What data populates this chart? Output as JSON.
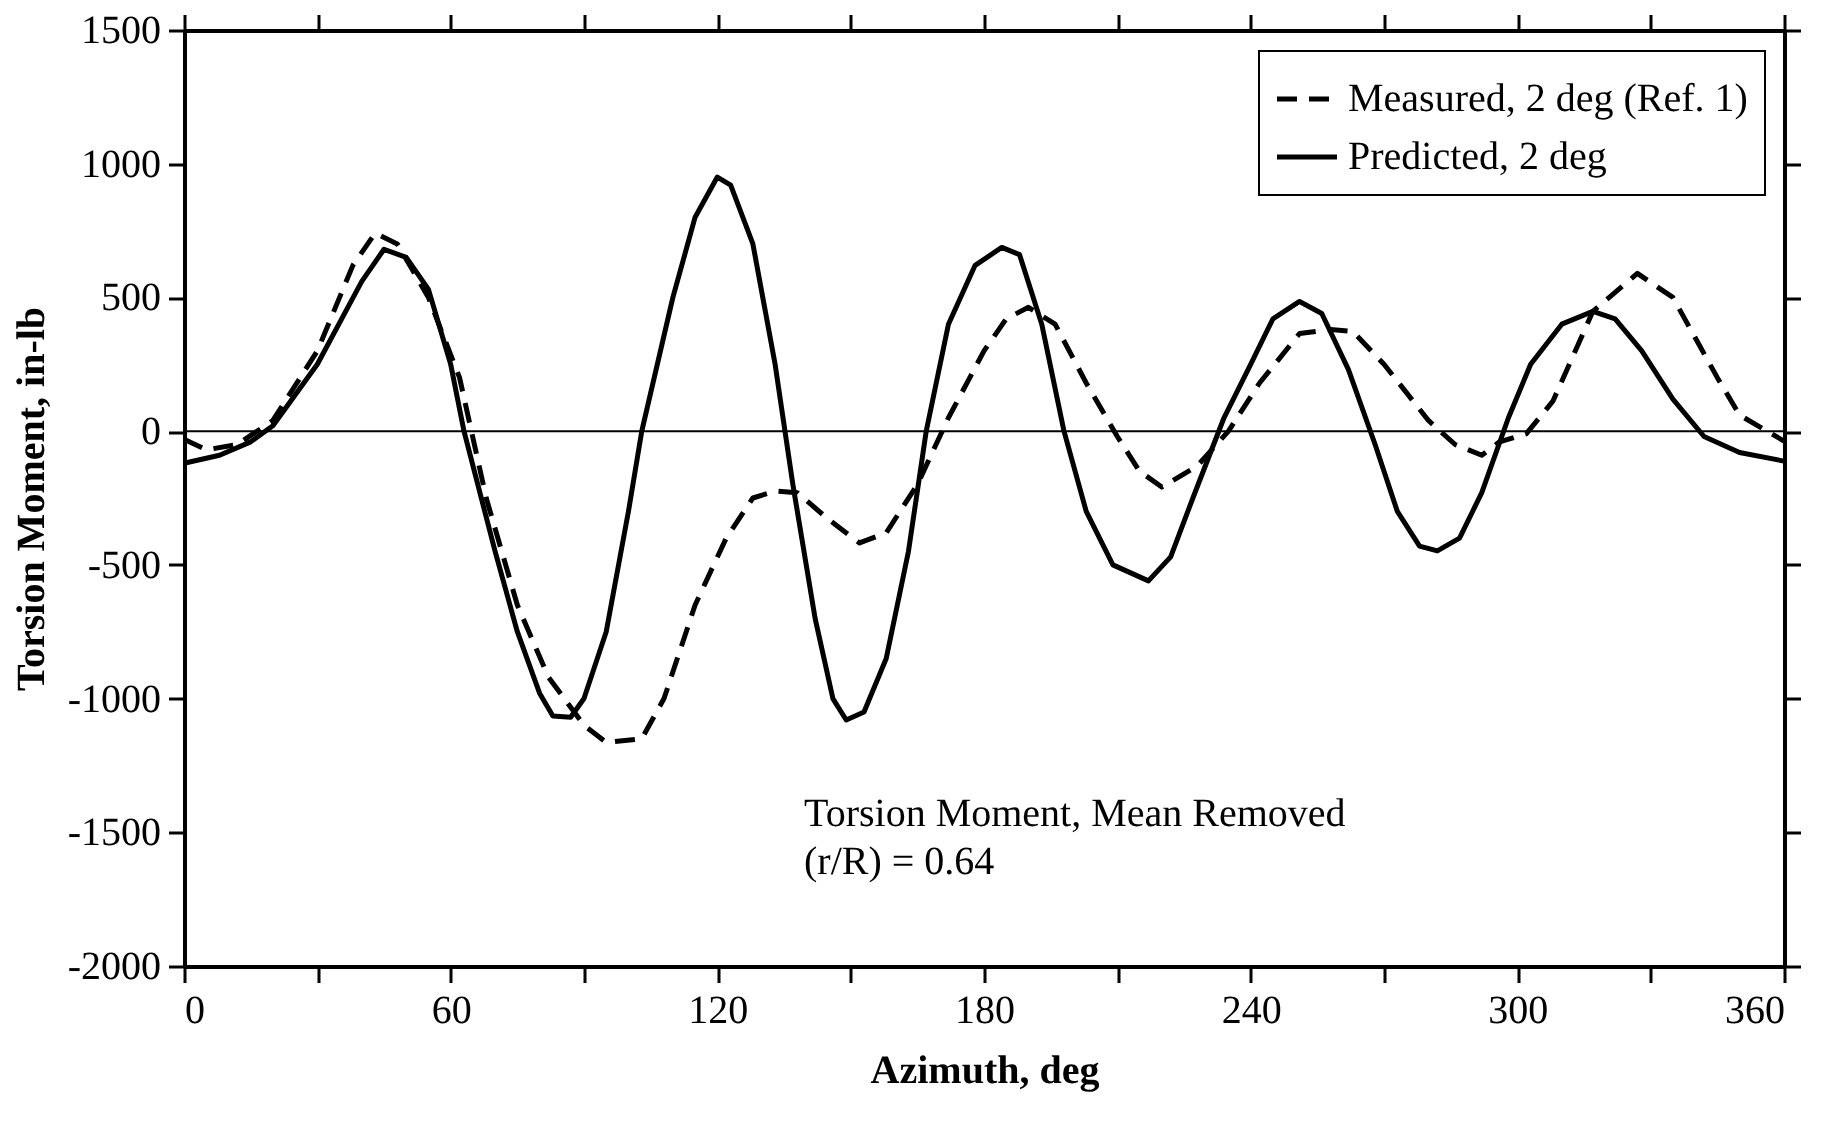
{
  "chart_data": {
    "type": "line",
    "xlabel": "Azimuth, deg",
    "ylabel": "Torsion Moment, in-lb",
    "xlim": [
      0,
      360
    ],
    "xticks": [
      0,
      {
        "value": 30,
        "label": null
      },
      60,
      {
        "value": 90,
        "label": null
      },
      120,
      {
        "value": 150,
        "label": null
      },
      180,
      {
        "value": 210,
        "label": null
      },
      240,
      {
        "value": 270,
        "label": null
      },
      300,
      {
        "value": 330,
        "label": null
      },
      360
    ],
    "ylim": [
      -2000,
      1500
    ],
    "yticks": [
      -2000,
      -1500,
      -1000,
      -500,
      0,
      500,
      1000,
      1500
    ],
    "grid": false,
    "legend": "top right",
    "ref_lines": [
      {
        "axis": "y",
        "value": 0,
        "label": null,
        "color": "#000000",
        "line_style": "solid"
      }
    ],
    "annotations": [
      "Torsion Moment, Mean Removed",
      "(r/R) = 0.64"
    ],
    "series": [
      {
        "name": "Measured, 2 deg (Ref. 1)",
        "color": "#000000",
        "line_style": "dashed",
        "x": [
          0,
          5,
          12,
          20,
          30,
          38,
          43,
          48,
          55,
          62,
          68,
          75,
          82,
          90,
          95,
          103,
          108,
          115,
          122,
          128,
          133,
          138,
          145,
          152,
          158,
          165,
          172,
          180,
          185,
          190,
          196,
          203,
          210,
          215,
          220,
          228,
          235,
          242,
          251,
          258,
          263,
          270,
          280,
          286,
          292,
          296,
          302,
          308,
          317,
          327,
          335,
          340,
          345,
          350,
          360
        ],
        "values": [
          -30,
          -70,
          -50,
          40,
          300,
          620,
          740,
          700,
          500,
          200,
          -250,
          -650,
          -920,
          -1100,
          -1164,
          -1150,
          -1000,
          -650,
          -400,
          -250,
          -224,
          -230,
          -330,
          -418,
          -380,
          -200,
          50,
          300,
          420,
          463,
          400,
          180,
          -20,
          -150,
          -209,
          -130,
          0,
          180,
          365,
          380,
          373,
          250,
          40,
          -50,
          -90,
          -40,
          -10,
          112,
          448,
          590,
          500,
          350,
          200,
          60,
          -37
        ]
      },
      {
        "name": "Predicted, 2 deg",
        "color": "#000000",
        "line_style": "solid",
        "x": [
          0,
          8,
          15,
          20,
          30,
          40,
          45,
          50,
          55,
          60,
          63,
          70,
          75,
          80,
          83,
          87,
          90,
          95,
          100,
          103,
          110,
          115,
          120,
          123,
          128,
          133,
          137,
          142,
          146,
          149,
          153,
          158,
          163,
          167,
          172,
          178,
          184,
          188,
          193,
          198,
          203,
          209,
          217,
          222,
          227,
          234,
          240,
          245,
          251,
          256,
          262,
          268,
          273,
          278,
          282,
          287,
          292,
          298,
          303,
          310,
          317,
          322,
          328,
          335,
          342,
          350,
          360
        ],
        "values": [
          -120,
          -90,
          -40,
          20,
          250,
          560,
          680,
          650,
          530,
          250,
          0,
          -450,
          -750,
          -980,
          -1065,
          -1070,
          -1000,
          -750,
          -300,
          0,
          500,
          800,
          950,
          920,
          700,
          250,
          -200,
          -700,
          -1000,
          -1080,
          -1050,
          -850,
          -450,
          0,
          400,
          620,
          687,
          660,
          400,
          0,
          -300,
          -500,
          -560,
          -470,
          -250,
          50,
          250,
          420,
          485,
          440,
          230,
          -50,
          -300,
          -430,
          -448,
          -400,
          -230,
          50,
          250,
          400,
          448,
          420,
          300,
          120,
          -20,
          -80,
          -112
        ]
      }
    ]
  }
}
